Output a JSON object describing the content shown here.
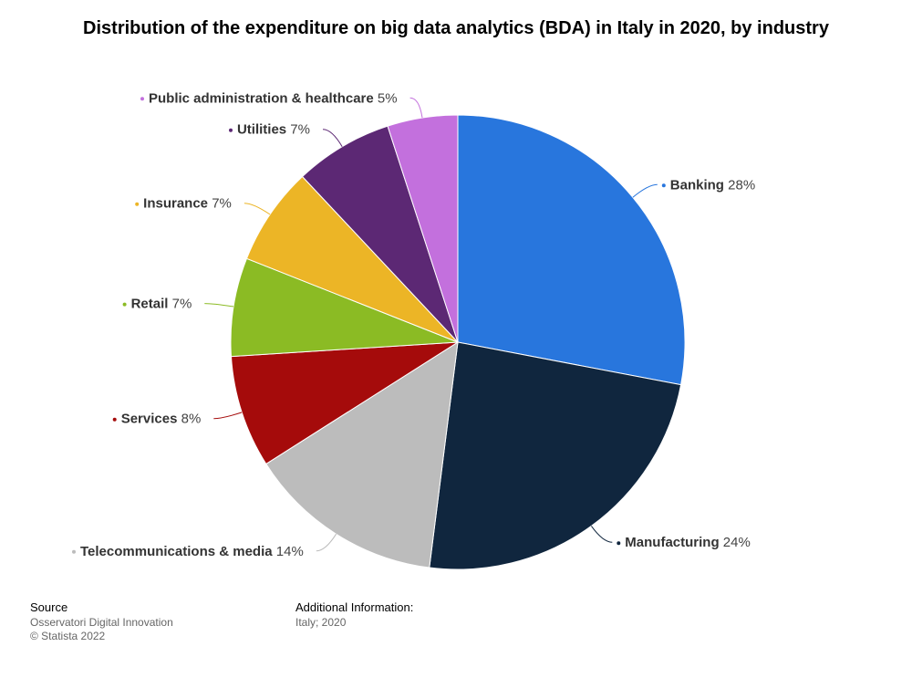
{
  "chart_data": {
    "type": "pie",
    "title": "Distribution of the expenditure on big data analytics (BDA) in Italy in 2020, by industry",
    "unit": "%",
    "slices": [
      {
        "label": "Banking",
        "value": 28,
        "color": "#2876dd"
      },
      {
        "label": "Manufacturing",
        "value": 24,
        "color": "#10263e"
      },
      {
        "label": "Telecommunications & media",
        "value": 14,
        "color": "#bcbcbc"
      },
      {
        "label": "Services",
        "value": 8,
        "color": "#a50b0b"
      },
      {
        "label": "Retail",
        "value": 7,
        "color": "#8bbb24"
      },
      {
        "label": "Insurance",
        "value": 7,
        "color": "#ecb526"
      },
      {
        "label": "Utilities",
        "value": 7,
        "color": "#5c2874"
      },
      {
        "label": "Public administration & healthcare",
        "value": 5,
        "color": "#c370dd"
      }
    ]
  },
  "footer": {
    "source_heading": "Source",
    "source_lines": [
      "Osservatori Digital Innovation",
      "© Statista 2022"
    ],
    "info_heading": "Additional Information:",
    "info_lines": [
      "Italy; 2020"
    ]
  }
}
